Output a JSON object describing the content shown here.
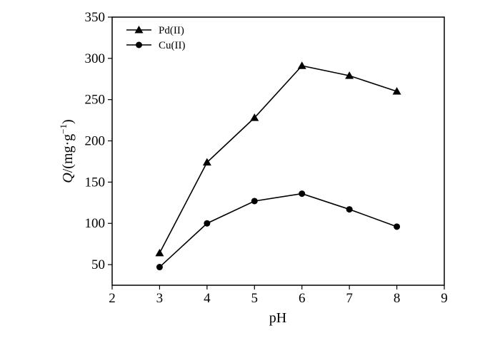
{
  "chart_data": {
    "type": "line",
    "x": [
      3,
      4,
      5,
      6,
      7,
      8
    ],
    "series": [
      {
        "name": "Pd(II)",
        "marker": "triangle",
        "values": [
          64,
          174,
          228,
          291,
          279,
          260
        ]
      },
      {
        "name": "Cu(II)",
        "marker": "circle",
        "values": [
          47,
          100,
          127,
          136,
          117,
          96
        ]
      }
    ],
    "xlabel": "pH",
    "ylabel": {
      "symbol": "Q",
      "unit_prefix": "/(mg·g",
      "unit_exp": "−1",
      "unit_suffix": ")"
    },
    "xlim": [
      2,
      9
    ],
    "ylim": [
      25,
      350
    ],
    "xticks": [
      2,
      3,
      4,
      5,
      6,
      7,
      8,
      9
    ],
    "yticks": [
      50,
      100,
      150,
      200,
      250,
      300,
      350
    ],
    "grid": false,
    "legend_position": "top-left",
    "colors": {
      "line": "#000000",
      "marker": "#000000"
    }
  }
}
